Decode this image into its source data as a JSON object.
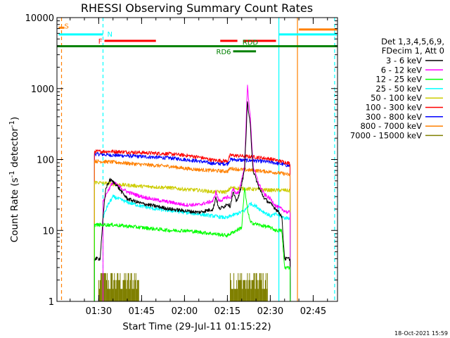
{
  "chart_data": {
    "type": "line",
    "title": "RHESSI Observing Summary Count Rates",
    "xlabel": "Start Time (29-Jul-11 01:15:22)",
    "ylabel": "Count Rate (s",
    "ylabel_sup": "-1",
    "ylabel_mid": " detector",
    "ylabel_sup2": "-1",
    "ylabel_end": ")",
    "y_scale": "log",
    "ylim": [
      1,
      10000
    ],
    "xlim_minutes": [
      75.4,
      173.5
    ],
    "x_ticks": [
      {
        "label": "01:30",
        "minutes": 90
      },
      {
        "label": "01:45",
        "minutes": 105
      },
      {
        "label": "02:00",
        "minutes": 120
      },
      {
        "label": "02:15",
        "minutes": 135
      },
      {
        "label": "02:30",
        "minutes": 150
      },
      {
        "label": "02:45",
        "minutes": 165
      }
    ],
    "y_ticks": [
      {
        "label": "1",
        "value": 1
      },
      {
        "label": "10",
        "value": 10
      },
      {
        "label": "100",
        "value": 100
      },
      {
        "label": "1000",
        "value": 1000
      },
      {
        "label": "10000",
        "value": 10000
      }
    ],
    "legend_placement": "right",
    "legend_header": [
      "Det 1,3,4,5,6,9,",
      "FDecim 1, Att 0"
    ],
    "legend": [
      {
        "label": "3 - 6 keV",
        "color": "#000000"
      },
      {
        "label": "6 - 12 keV",
        "color": "#ff00ff"
      },
      {
        "label": "12 - 25 keV",
        "color": "#00ff00"
      },
      {
        "label": "25 - 50 keV",
        "color": "#00ffff"
      },
      {
        "label": "50 - 100 keV",
        "color": "#cccc00"
      },
      {
        "label": "100 - 300 keV",
        "color": "#ff0000"
      },
      {
        "label": "300 - 800 keV",
        "color": "#0000ff"
      },
      {
        "label": "800 - 7000 keV",
        "color": "#ff8000"
      },
      {
        "label": "7000 - 15000 keV",
        "color": "#808000"
      }
    ],
    "series": [
      {
        "color": "#0000ff",
        "points": [
          [
            88.5,
            120
          ],
          [
            95,
            115
          ],
          [
            105,
            110
          ],
          [
            115,
            105
          ],
          [
            120,
            100
          ],
          [
            125,
            95
          ],
          [
            130,
            88
          ],
          [
            135,
            87
          ],
          [
            136,
            100
          ],
          [
            140,
            98
          ],
          [
            145,
            96
          ],
          [
            150,
            92
          ],
          [
            155,
            85
          ],
          [
            157,
            80
          ]
        ]
      },
      {
        "color": "#ff0000",
        "points": [
          [
            88.5,
            130
          ],
          [
            95,
            130
          ],
          [
            105,
            125
          ],
          [
            115,
            120
          ],
          [
            120,
            115
          ],
          [
            125,
            108
          ],
          [
            130,
            98
          ],
          [
            135,
            95
          ],
          [
            136,
            115
          ],
          [
            140,
            112
          ],
          [
            145,
            108
          ],
          [
            150,
            102
          ],
          [
            155,
            92
          ],
          [
            157,
            88
          ]
        ]
      },
      {
        "color": "#ff8000",
        "points": [
          [
            88.5,
            95
          ],
          [
            95,
            92
          ],
          [
            105,
            85
          ],
          [
            115,
            80
          ],
          [
            120,
            75
          ],
          [
            125,
            72
          ],
          [
            130,
            70
          ],
          [
            135,
            68
          ],
          [
            136,
            75
          ],
          [
            140,
            72
          ],
          [
            145,
            70
          ],
          [
            150,
            67
          ],
          [
            155,
            63
          ],
          [
            157,
            60
          ]
        ]
      },
      {
        "color": "#cccc00",
        "points": [
          [
            88.5,
            48
          ],
          [
            95,
            45
          ],
          [
            105,
            42
          ],
          [
            115,
            40
          ],
          [
            120,
            38
          ],
          [
            125,
            37
          ],
          [
            130,
            35
          ],
          [
            135,
            35
          ],
          [
            136,
            40
          ],
          [
            140,
            39
          ],
          [
            145,
            38
          ],
          [
            150,
            37
          ],
          [
            155,
            37
          ],
          [
            157,
            36
          ]
        ]
      },
      {
        "color": "#00ffff",
        "points": [
          [
            91.5,
            15
          ],
          [
            93,
            22
          ],
          [
            95,
            30
          ],
          [
            100,
            25
          ],
          [
            105,
            22
          ],
          [
            110,
            20
          ],
          [
            115,
            19
          ],
          [
            120,
            18
          ],
          [
            125,
            17
          ],
          [
            130,
            16
          ],
          [
            135,
            15
          ],
          [
            136,
            16
          ],
          [
            138,
            17
          ],
          [
            141,
            19
          ],
          [
            143,
            24
          ],
          [
            145,
            22
          ],
          [
            147,
            19
          ],
          [
            149,
            17
          ],
          [
            150,
            16
          ],
          [
            152,
            17
          ],
          [
            155,
            15
          ],
          [
            157,
            15
          ]
        ]
      },
      {
        "color": "#ff00ff",
        "points": [
          [
            91.5,
            25
          ],
          [
            93,
            35
          ],
          [
            95,
            48
          ],
          [
            97,
            42
          ],
          [
            100,
            35
          ],
          [
            105,
            30
          ],
          [
            110,
            27
          ],
          [
            115,
            25
          ],
          [
            120,
            23
          ],
          [
            125,
            23
          ],
          [
            130,
            26
          ],
          [
            131,
            35
          ],
          [
            132,
            26
          ],
          [
            134,
            28
          ],
          [
            135,
            30
          ],
          [
            136,
            28
          ],
          [
            137,
            40
          ],
          [
            138,
            32
          ],
          [
            139,
            35
          ],
          [
            141,
            80
          ],
          [
            142,
            1100
          ],
          [
            143,
            400
          ],
          [
            144,
            80
          ],
          [
            146,
            45
          ],
          [
            148,
            32
          ],
          [
            150,
            28
          ],
          [
            152,
            22
          ],
          [
            154,
            20
          ],
          [
            156,
            18
          ],
          [
            157,
            18
          ]
        ]
      },
      {
        "color": "#000000",
        "points": [
          [
            88.5,
            4
          ],
          [
            90.5,
            4
          ],
          [
            91.5,
            15
          ],
          [
            92.5,
            40
          ],
          [
            94,
            52
          ],
          [
            96,
            45
          ],
          [
            98,
            35
          ],
          [
            100,
            28
          ],
          [
            105,
            24
          ],
          [
            110,
            22
          ],
          [
            115,
            20
          ],
          [
            120,
            19
          ],
          [
            125,
            18
          ],
          [
            130,
            20
          ],
          [
            131,
            30
          ],
          [
            132,
            20
          ],
          [
            134,
            22
          ],
          [
            135,
            24
          ],
          [
            136,
            22
          ],
          [
            137,
            35
          ],
          [
            138,
            26
          ],
          [
            139,
            30
          ],
          [
            141,
            70
          ],
          [
            142,
            650
          ],
          [
            143,
            300
          ],
          [
            144,
            70
          ],
          [
            146,
            40
          ],
          [
            148,
            28
          ],
          [
            150,
            24
          ],
          [
            152,
            20
          ],
          [
            154,
            16
          ],
          [
            155,
            4
          ],
          [
            157,
            4
          ]
        ]
      },
      {
        "color": "#00ff00",
        "points": [
          [
            88.5,
            12
          ],
          [
            95,
            12
          ],
          [
            105,
            11
          ],
          [
            115,
            10
          ],
          [
            120,
            10
          ],
          [
            125,
            9.5
          ],
          [
            130,
            9
          ],
          [
            135,
            8.5
          ],
          [
            136,
            9
          ],
          [
            140,
            11
          ],
          [
            141,
            40
          ],
          [
            142,
            20
          ],
          [
            143,
            13
          ],
          [
            146,
            12
          ],
          [
            150,
            11
          ],
          [
            152,
            10
          ],
          [
            154,
            10
          ],
          [
            155,
            3
          ],
          [
            157,
            3
          ]
        ]
      }
    ],
    "brown_spikes": {
      "color": "#808000",
      "ranges": [
        [
          90,
          104
        ],
        [
          136,
          149
        ]
      ],
      "levels": [
        1.5,
        2.0,
        2.5
      ]
    },
    "vertical_lines": [
      {
        "minutes": 77,
        "color": "#ff8000",
        "style": "dashed"
      },
      {
        "minutes": 91.5,
        "color": "#00ffff",
        "style": "dashed"
      },
      {
        "minutes": 153,
        "color": "#00ffff",
        "style": "solid"
      },
      {
        "minutes": 159.5,
        "color": "#ff8000",
        "style": "solid"
      },
      {
        "minutes": 172.5,
        "color": "#00ffff",
        "style": "dashed"
      }
    ],
    "bars": [
      {
        "label": "S",
        "color": "#ff8000",
        "x1": 76,
        "x2": 78,
        "y": 7200,
        "label_side": "right"
      },
      {
        "label": "N",
        "color": "#00ffff",
        "x1": 76,
        "x2": 91.5,
        "y": 5800,
        "label_side": "right-end"
      },
      {
        "label": "",
        "color": "#00ffff",
        "x1": 153,
        "x2": 173.3,
        "y": 5800,
        "label_side": "none"
      },
      {
        "label": "",
        "color": "#ff8000",
        "x1": 160,
        "x2": 173.3,
        "y": 6800,
        "label_side": "none"
      },
      {
        "label": "F",
        "color": "#ff0000",
        "x1": 92,
        "x2": 110,
        "y": 4700,
        "label_side": "left"
      },
      {
        "label": "",
        "color": "#ff0000",
        "x1": 132.5,
        "x2": 138.5,
        "y": 4700,
        "label_side": "none"
      },
      {
        "label": "",
        "color": "#ff0000",
        "x1": 140.5,
        "x2": 152,
        "y": 4700,
        "label_side": "none"
      },
      {
        "label": "",
        "color": "#008000",
        "x1": 75.4,
        "x2": 173.5,
        "y": 3950,
        "label_side": "none"
      },
      {
        "label": "RDD",
        "color": "#008000",
        "x1": 143,
        "x2": 143,
        "y": 3950,
        "label_side": "above"
      },
      {
        "label": "RD6",
        "color": "#008000",
        "x1": 137,
        "x2": 145,
        "y": 3350,
        "label_side": "left"
      }
    ],
    "footer_timestamp": "18-Oct-2021 15:59"
  }
}
